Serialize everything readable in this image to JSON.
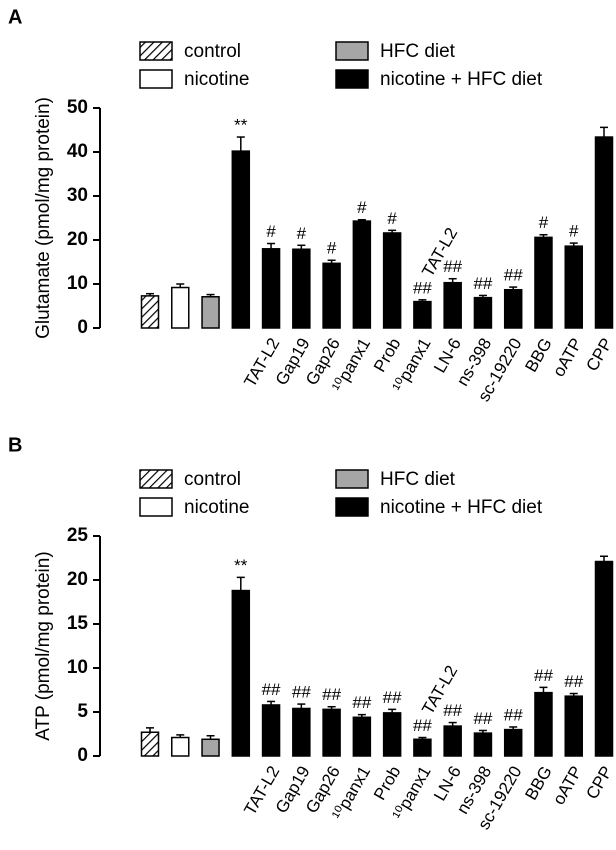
{
  "chart_data": [
    {
      "type": "bar",
      "panel_label": "A",
      "y_label": "Glutamate (pmol/mg protein)",
      "ylim": [
        0,
        50
      ],
      "yticks": [
        0,
        10,
        20,
        30,
        40,
        50
      ],
      "categories": [
        null,
        null,
        null,
        null,
        "TAT-L2",
        "Gap19",
        "Gap26",
        "¹⁰panx1",
        "Prob",
        "¹⁰panx1",
        "LN-6",
        "ns-398",
        "sc-19220",
        "BBG",
        "oATP",
        "CPP"
      ],
      "series": [
        {
          "name": "control",
          "color": "#000000",
          "pattern": "hatch",
          "values": [
            7.3,
            null,
            null,
            null,
            null,
            null,
            null,
            null,
            null,
            null,
            null,
            null,
            null,
            null,
            null,
            null
          ],
          "errors": [
            0.5,
            null,
            null,
            null,
            null,
            null,
            null,
            null,
            null,
            null,
            null,
            null,
            null,
            null,
            null,
            null
          ]
        },
        {
          "name": "nicotine",
          "color": "#ffffff",
          "values": [
            null,
            9.2,
            null,
            null,
            null,
            null,
            null,
            null,
            null,
            null,
            null,
            null,
            null,
            null,
            null,
            null
          ],
          "errors": [
            null,
            0.8,
            null,
            null,
            null,
            null,
            null,
            null,
            null,
            null,
            null,
            null,
            null,
            null,
            null,
            null
          ]
        },
        {
          "name": "HFC diet",
          "color": "#a6a6a6",
          "values": [
            null,
            null,
            7.1,
            null,
            null,
            null,
            null,
            null,
            null,
            null,
            null,
            null,
            null,
            null,
            null,
            null
          ],
          "errors": [
            null,
            null,
            0.5,
            null,
            null,
            null,
            null,
            null,
            null,
            null,
            null,
            null,
            null,
            null,
            null,
            null
          ]
        },
        {
          "name": "nicotine + HFC diet",
          "color": "#000000",
          "values": [
            null,
            null,
            null,
            40.2,
            18.0,
            17.9,
            14.7,
            24.3,
            21.6,
            6.0,
            10.3,
            6.9,
            8.7,
            20.6,
            18.6,
            43.4
          ],
          "errors": [
            null,
            null,
            null,
            3.2,
            1.2,
            0.9,
            0.7,
            0.3,
            0.6,
            0.4,
            0.9,
            0.5,
            0.6,
            0.6,
            0.7,
            2.2
          ]
        }
      ],
      "annotations": [
        null,
        null,
        null,
        "**",
        "#",
        "#",
        "#",
        "#",
        "#",
        "##",
        "##",
        "##",
        "##",
        "#",
        "#",
        null
      ],
      "notes": [
        null,
        null,
        null,
        null,
        null,
        null,
        null,
        null,
        null,
        "TAT-L2",
        null,
        null,
        null,
        null,
        null,
        null
      ]
    },
    {
      "type": "bar",
      "panel_label": "B",
      "y_label": "ATP (pmol/mg protein)",
      "ylim": [
        0,
        25
      ],
      "yticks": [
        0,
        5,
        10,
        15,
        20,
        25
      ],
      "categories": [
        null,
        null,
        null,
        null,
        "TAT-L2",
        "Gap19",
        "Gap26",
        "¹⁰panx1",
        "Prob",
        "¹⁰panx1",
        "LN-6",
        "ns-398",
        "sc-19220",
        "BBG",
        "oATP",
        "CPP"
      ],
      "series": [
        {
          "name": "control",
          "color": "#000000",
          "pattern": "hatch",
          "values": [
            2.7,
            null,
            null,
            null,
            null,
            null,
            null,
            null,
            null,
            null,
            null,
            null,
            null,
            null,
            null,
            null
          ],
          "errors": [
            0.5,
            null,
            null,
            null,
            null,
            null,
            null,
            null,
            null,
            null,
            null,
            null,
            null,
            null,
            null,
            null
          ]
        },
        {
          "name": "nicotine",
          "color": "#ffffff",
          "values": [
            null,
            2.1,
            null,
            null,
            null,
            null,
            null,
            null,
            null,
            null,
            null,
            null,
            null,
            null,
            null,
            null
          ],
          "errors": [
            null,
            0.3,
            null,
            null,
            null,
            null,
            null,
            null,
            null,
            null,
            null,
            null,
            null,
            null,
            null,
            null
          ]
        },
        {
          "name": "HFC diet",
          "color": "#a6a6a6",
          "values": [
            null,
            null,
            1.9,
            null,
            null,
            null,
            null,
            null,
            null,
            null,
            null,
            null,
            null,
            null,
            null,
            null
          ],
          "errors": [
            null,
            null,
            0.4,
            null,
            null,
            null,
            null,
            null,
            null,
            null,
            null,
            null,
            null,
            null,
            null,
            null
          ]
        },
        {
          "name": "nicotine + HFC diet",
          "color": "#000000",
          "values": [
            null,
            null,
            null,
            18.8,
            5.8,
            5.4,
            5.3,
            4.4,
            4.9,
            1.9,
            3.4,
            2.6,
            3.0,
            7.2,
            6.8,
            22.1
          ],
          "errors": [
            null,
            null,
            null,
            1.5,
            0.4,
            0.5,
            0.3,
            0.3,
            0.4,
            0.2,
            0.4,
            0.3,
            0.3,
            0.6,
            0.3,
            0.6
          ]
        }
      ],
      "annotations": [
        null,
        null,
        null,
        "**",
        "##",
        "##",
        "##",
        "##",
        "##",
        "##",
        "##",
        "##",
        "##",
        "##",
        "##",
        null
      ],
      "notes": [
        null,
        null,
        null,
        null,
        null,
        null,
        null,
        null,
        null,
        "TAT-L2",
        null,
        null,
        null,
        null,
        null,
        null
      ]
    }
  ]
}
